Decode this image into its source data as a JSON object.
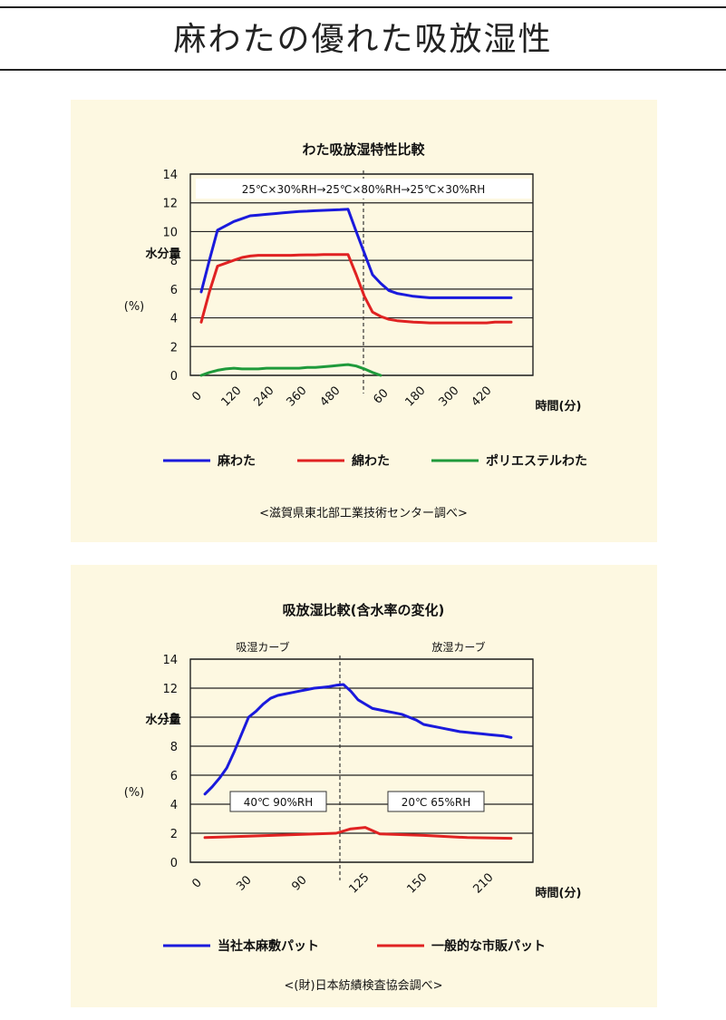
{
  "header": {
    "title": "麻わたの優れた吸放湿性"
  },
  "chart_data": [
    {
      "type": "line",
      "title": "わた吸放湿特性比較",
      "annotation": "25℃×30%RH→25℃×80%RH→25℃×30%RH",
      "ylabel": "水分量",
      "ylabel_unit": "(%)",
      "xlabel": "時間(分)",
      "ylim": [
        0,
        14
      ],
      "yticks": [
        0,
        2,
        4,
        6,
        8,
        10,
        12,
        14
      ],
      "xticks": [
        "0",
        "120",
        "240",
        "360",
        "480",
        "60",
        "180",
        "300",
        "420"
      ],
      "grid": true,
      "legend_position": "bottom",
      "series": [
        {
          "name": "麻わた",
          "color": "#1a1adc",
          "x": [
            0,
            30,
            60,
            90,
            120,
            150,
            180,
            210,
            240,
            270,
            300,
            330,
            360,
            390,
            420,
            450,
            480,
            510,
            540,
            570,
            600,
            630,
            660,
            690,
            720,
            750,
            780,
            810,
            840,
            870,
            900,
            930,
            960,
            990,
            1020,
            1050,
            1080,
            1110,
            1140
          ],
          "y": [
            5.8,
            8.0,
            10.1,
            10.4,
            10.7,
            10.9,
            11.1,
            11.15,
            11.2,
            11.25,
            11.3,
            11.35,
            11.4,
            11.42,
            11.45,
            11.48,
            11.5,
            11.52,
            11.55,
            10.0,
            8.5,
            7.0,
            6.4,
            5.9,
            5.7,
            5.6,
            5.5,
            5.45,
            5.4,
            5.4,
            5.4,
            5.4,
            5.4,
            5.4,
            5.4,
            5.4,
            5.4,
            5.4,
            5.4
          ]
        },
        {
          "name": "綿わた",
          "color": "#e02222",
          "x": [
            0,
            30,
            60,
            90,
            120,
            150,
            180,
            210,
            240,
            270,
            300,
            330,
            360,
            390,
            420,
            450,
            480,
            510,
            540,
            570,
            600,
            630,
            660,
            690,
            720,
            750,
            780,
            810,
            840,
            870,
            900,
            930,
            960,
            990,
            1020,
            1050,
            1080,
            1110,
            1140
          ],
          "y": [
            3.7,
            5.8,
            7.6,
            7.8,
            8.0,
            8.2,
            8.3,
            8.35,
            8.35,
            8.35,
            8.35,
            8.35,
            8.37,
            8.38,
            8.38,
            8.4,
            8.4,
            8.4,
            8.4,
            7.0,
            5.5,
            4.4,
            4.1,
            3.9,
            3.8,
            3.75,
            3.7,
            3.68,
            3.65,
            3.65,
            3.65,
            3.65,
            3.65,
            3.65,
            3.65,
            3.65,
            3.7,
            3.7,
            3.7
          ]
        },
        {
          "name": "ポリエステルわた",
          "color": "#1f9a3b",
          "x": [
            0,
            30,
            60,
            90,
            120,
            150,
            180,
            210,
            240,
            270,
            300,
            330,
            360,
            390,
            420,
            450,
            480,
            510,
            540,
            570,
            600,
            630,
            660
          ],
          "y": [
            0.0,
            0.2,
            0.35,
            0.45,
            0.5,
            0.45,
            0.45,
            0.45,
            0.5,
            0.5,
            0.5,
            0.5,
            0.5,
            0.55,
            0.55,
            0.6,
            0.65,
            0.7,
            0.75,
            0.65,
            0.45,
            0.2,
            0.0
          ]
        }
      ],
      "source": "<滋賀県東北部工業技術センター調べ>"
    },
    {
      "type": "line",
      "title": "吸放湿比較(含水率の変化)",
      "phase_labels": [
        "吸湿カーブ",
        "放湿カーブ"
      ],
      "condition_labels": [
        "40℃ 90%RH",
        "20℃ 65%RH"
      ],
      "ylabel": "水分量",
      "ylabel_unit": "(%)",
      "xlabel": "時間(分)",
      "ylim": [
        0,
        14
      ],
      "yticks": [
        0,
        2,
        4,
        6,
        8,
        10,
        12,
        14
      ],
      "xticks": [
        "0",
        "30",
        "90",
        "125",
        "150",
        "210"
      ],
      "grid": true,
      "legend_position": "bottom",
      "series": [
        {
          "name": "当社本麻敷パット",
          "color": "#1a1adc",
          "x": [
            0,
            5,
            10,
            15,
            20,
            25,
            30,
            35,
            40,
            45,
            50,
            55,
            60,
            65,
            70,
            75,
            80,
            85,
            90,
            95,
            100,
            105,
            110,
            115,
            120,
            125,
            130,
            135,
            140,
            145,
            150,
            155,
            160,
            165,
            170,
            175,
            180,
            185,
            190,
            195,
            200,
            205,
            210
          ],
          "y": [
            4.7,
            5.2,
            5.8,
            6.5,
            7.6,
            8.8,
            10.0,
            10.4,
            10.9,
            11.3,
            11.5,
            11.6,
            11.7,
            11.8,
            11.9,
            12.0,
            12.05,
            12.1,
            12.2,
            12.25,
            11.8,
            11.2,
            10.9,
            10.6,
            10.5,
            10.4,
            10.3,
            10.2,
            10.0,
            9.8,
            9.5,
            9.4,
            9.3,
            9.2,
            9.1,
            9.0,
            8.95,
            8.9,
            8.85,
            8.8,
            8.75,
            8.7,
            8.6
          ]
        },
        {
          "name": "一般的な市販パット",
          "color": "#e02222",
          "x": [
            0,
            30,
            60,
            90,
            100,
            110,
            120,
            150,
            180,
            210
          ],
          "y": [
            1.7,
            1.8,
            1.9,
            2.0,
            2.3,
            2.4,
            1.95,
            1.85,
            1.7,
            1.65
          ]
        }
      ],
      "source": "<(財)日本紡績検査協会調べ>"
    }
  ]
}
